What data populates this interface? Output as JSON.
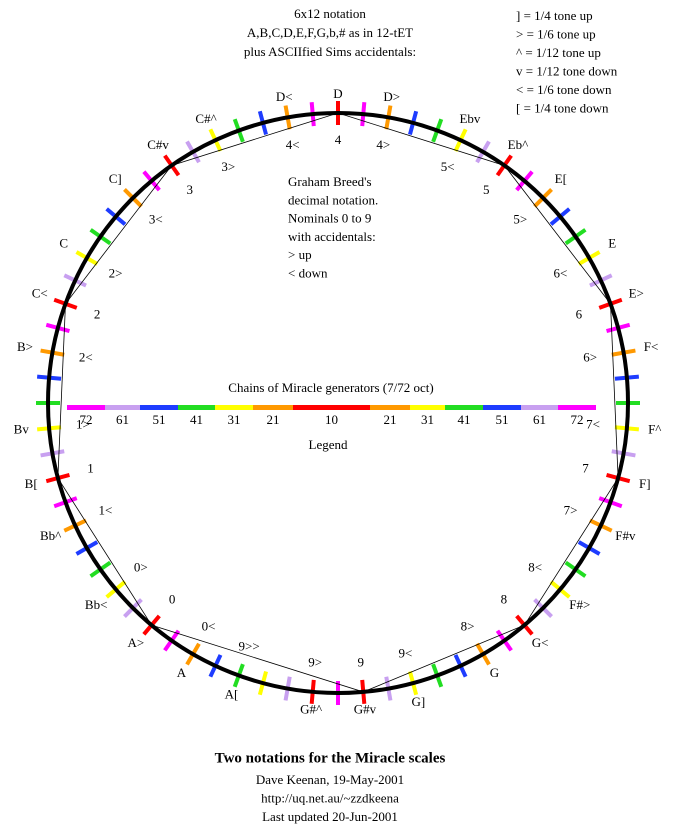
{
  "header": {
    "lines": [
      "6x12 notation",
      "A,B,C,D,E,F,G,b,# as in 12-tET",
      "plus ASCIIfied Sims accidentals:"
    ]
  },
  "key": {
    "lines": [
      "] = 1/4 tone up",
      "> = 1/6 tone up",
      "^ = 1/12 tone up",
      "v = 1/12 tone down",
      "< = 1/6 tone down",
      "[ = 1/4 tone down"
    ]
  },
  "center_note": {
    "lines": [
      "Graham Breed's",
      "decimal notation.",
      "Nominals 0 to 9",
      "with accidentals:",
      ">  up",
      "<  down"
    ]
  },
  "legend": {
    "title": "Chains of Miracle generators (7/72 oct)",
    "labels": [
      "72",
      "61",
      "51",
      "41",
      "31",
      "21",
      "10",
      "21",
      "31",
      "41",
      "51",
      "61",
      "72"
    ],
    "caption": "Legend"
  },
  "notes": [
    {
      "outer": "D",
      "inner": "4"
    },
    {
      "outer": "D>",
      "inner": "4>"
    },
    {
      "outer": "Ebv",
      "inner": "5<"
    },
    {
      "outer": "Eb^",
      "inner": "5"
    },
    {
      "outer": "E[",
      "inner": "5>"
    },
    {
      "outer": "E",
      "inner": "6<"
    },
    {
      "outer": "E>",
      "inner": "6"
    },
    {
      "outer": "F<",
      "inner": "6>"
    },
    {
      "outer": "F^",
      "inner": "7<"
    },
    {
      "outer": "F]",
      "inner": "7"
    },
    {
      "outer": "F#v",
      "inner": "7>"
    },
    {
      "outer": "F#>",
      "inner": "8<"
    },
    {
      "outer": "G<",
      "inner": "8"
    },
    {
      "outer": "G",
      "inner": "8>"
    },
    {
      "outer": "G]",
      "inner": "9<"
    },
    {
      "outer": "G#v",
      "inner": "9"
    },
    {
      "outer": "G#^",
      "inner": "9>"
    },
    {
      "outer": "A[",
      "inner": "9>>"
    },
    {
      "outer": "A",
      "inner": "0<"
    },
    {
      "outer": "A>",
      "inner": "0"
    },
    {
      "outer": "Bb<",
      "inner": "0>"
    },
    {
      "outer": "Bb^",
      "inner": "1<"
    },
    {
      "outer": "B[",
      "inner": "1"
    },
    {
      "outer": "Bv",
      "inner": "1>"
    },
    {
      "outer": "B>",
      "inner": "2<"
    },
    {
      "outer": "C<",
      "inner": "2"
    },
    {
      "outer": "C",
      "inner": "2>"
    },
    {
      "outer": "C]",
      "inner": "3<"
    },
    {
      "outer": "C#v",
      "inner": "3"
    },
    {
      "outer": "C#^",
      "inner": "3>"
    },
    {
      "outer": "D<",
      "inner": "4<"
    }
  ],
  "footer": {
    "title": "Two notations for the Miracle scales",
    "lines": [
      "Dave Keenan, 19-May-2001",
      "http://uq.net.au/~zzdkeena",
      "Last updated 20-Jun-2001"
    ]
  }
}
